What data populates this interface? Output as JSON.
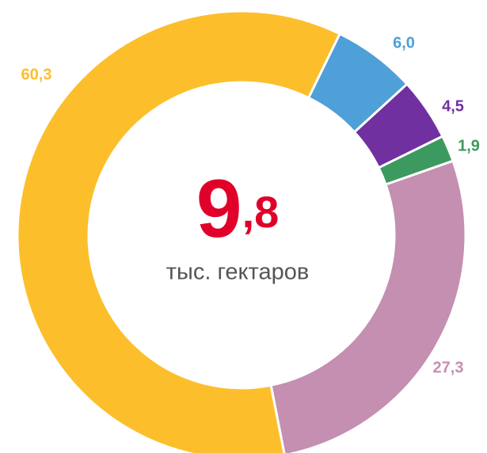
{
  "chart_data": {
    "type": "donut",
    "center_value": "9",
    "center_decimal": ",8",
    "subtitle": "тыс. гектаров",
    "categories": [
      null,
      null,
      null,
      null,
      null
    ],
    "values": [
      6.0,
      4.5,
      1.9,
      27.3,
      60.3
    ],
    "value_labels": [
      "6,0",
      "4,5",
      "1,9",
      "27,3",
      "60,3"
    ],
    "colors": [
      "#4f9fd8",
      "#7030a0",
      "#3c9a60",
      "#c48fb1",
      "#fcbf2b"
    ]
  }
}
